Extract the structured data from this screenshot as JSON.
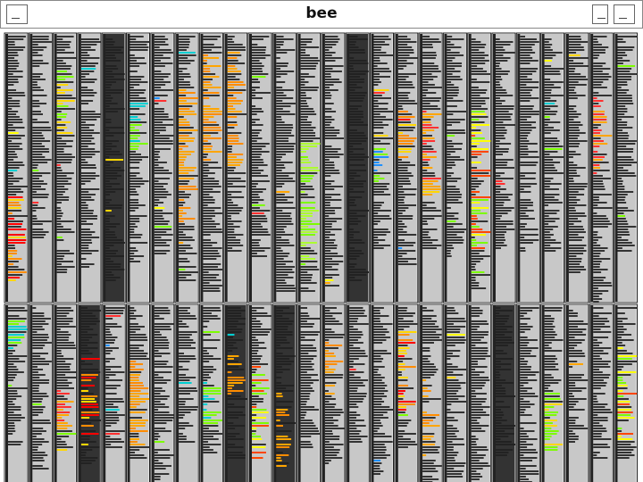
{
  "window": {
    "title": "bee"
  }
}
